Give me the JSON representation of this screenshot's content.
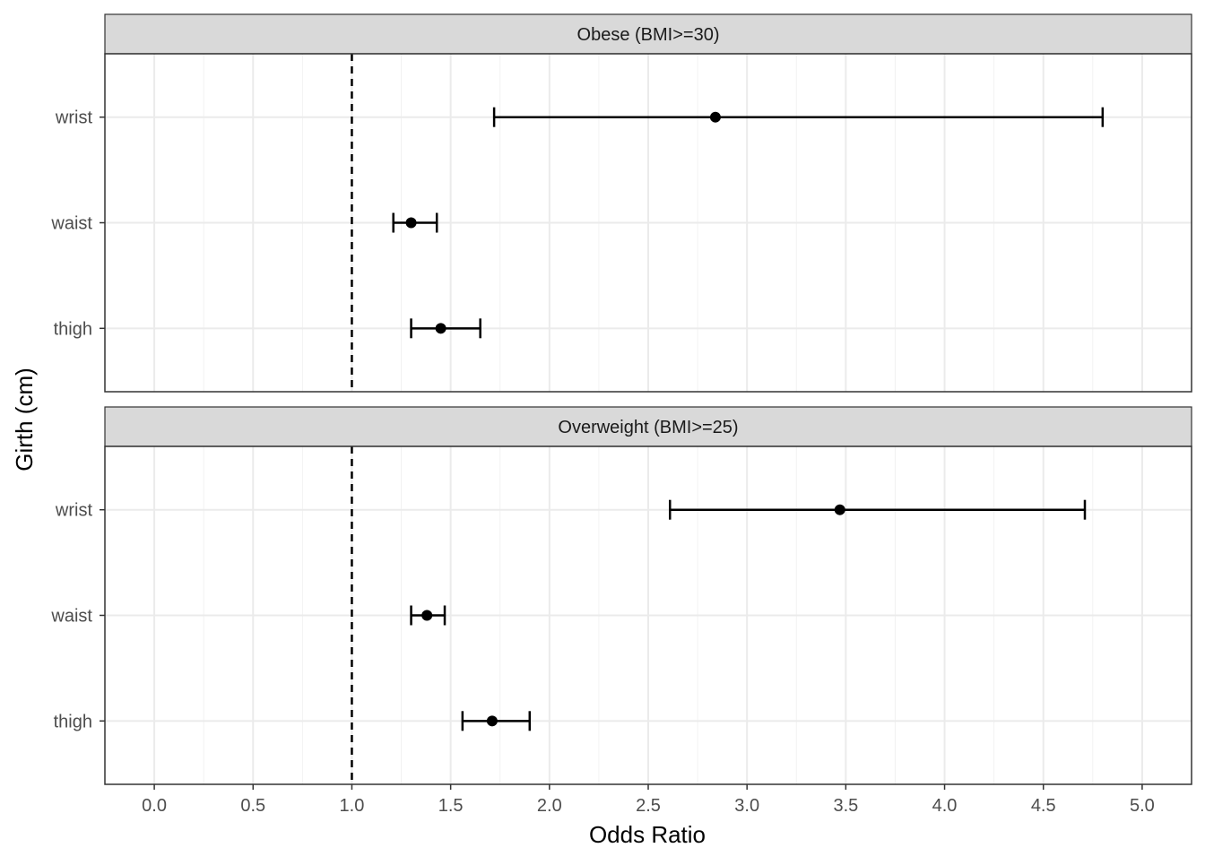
{
  "chart_data": {
    "type": "forest",
    "xlabel": "Odds Ratio",
    "ylabel": "Girth (cm)",
    "xlim": [
      -0.25,
      5.25
    ],
    "x_ticks": [
      "0.0",
      "0.5",
      "1.0",
      "1.5",
      "2.0",
      "2.5",
      "3.0",
      "3.5",
      "4.0",
      "4.5",
      "5.0"
    ],
    "reference_line": 1.0,
    "categories": [
      "wrist",
      "waist",
      "thigh"
    ],
    "grid": true,
    "panels": [
      {
        "label": "Obese (BMI>=30)",
        "points": [
          {
            "category": "wrist",
            "estimate": 2.84,
            "lower": 1.72,
            "upper": 4.8
          },
          {
            "category": "waist",
            "estimate": 1.3,
            "lower": 1.21,
            "upper": 1.43
          },
          {
            "category": "thigh",
            "estimate": 1.45,
            "lower": 1.3,
            "upper": 1.65
          }
        ]
      },
      {
        "label": "Overweight (BMI>=25)",
        "points": [
          {
            "category": "wrist",
            "estimate": 3.47,
            "lower": 2.61,
            "upper": 4.71
          },
          {
            "category": "waist",
            "estimate": 1.38,
            "lower": 1.3,
            "upper": 1.47
          },
          {
            "category": "thigh",
            "estimate": 1.71,
            "lower": 1.56,
            "upper": 1.9
          }
        ]
      }
    ],
    "colors": {
      "strip_fill": "#d9d9d9",
      "panel_border": "#333333",
      "grid": "#ebebeb",
      "mark": "#000000"
    }
  }
}
